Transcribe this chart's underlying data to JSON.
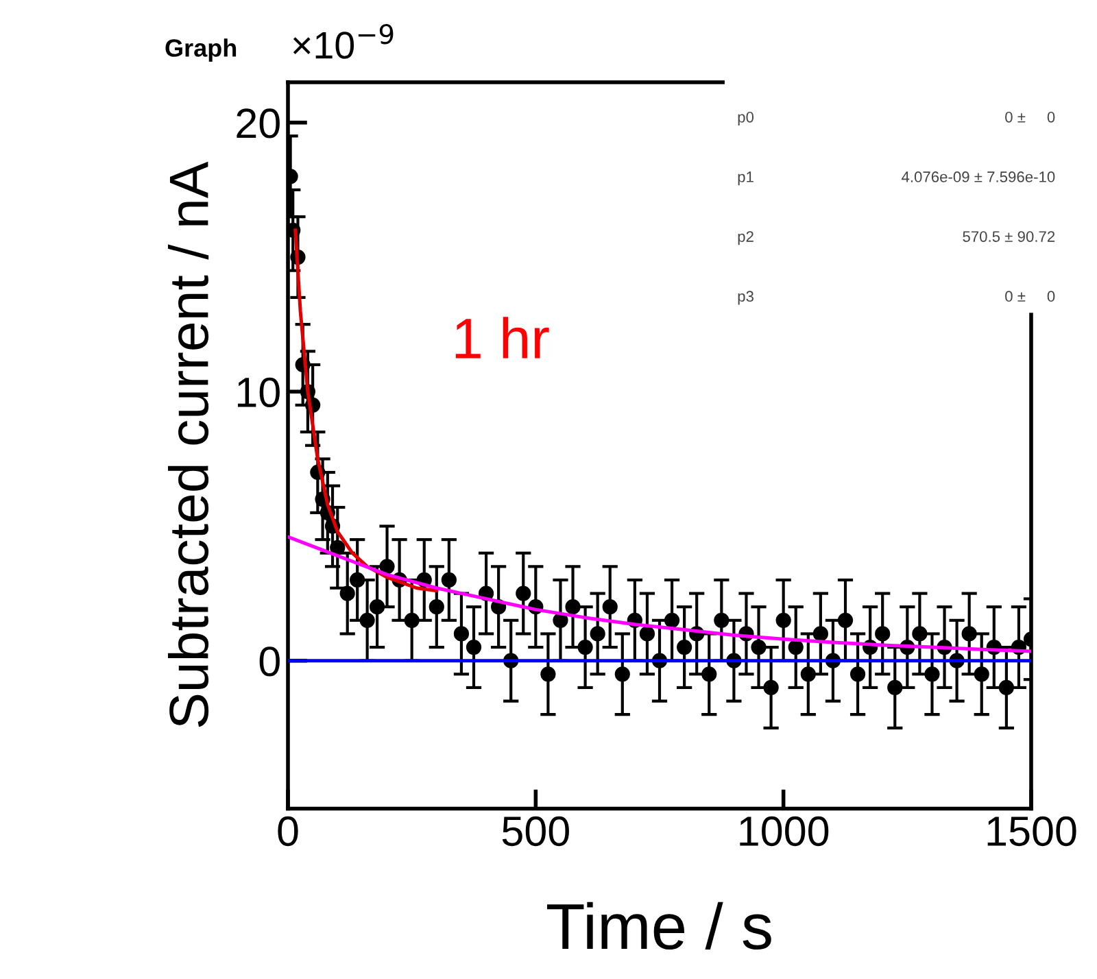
{
  "chart_data": {
    "type": "scatter",
    "title": "Graph",
    "xlabel": "Time / s",
    "ylabel": "Subtracted current / nA",
    "xlim": [
      0,
      1500
    ],
    "xticks": [
      0,
      500,
      1000,
      1500
    ],
    "ylim": [
      -5.5,
      21.5
    ],
    "yticks": [
      0,
      10,
      20
    ],
    "grid": false,
    "annotations": [
      "1 hr",
      "×10$^{−9}$",
      "p0",
      "0 ±     0",
      "p1",
      "4.076e-09 ± 7.596e-10",
      "p2",
      "570.5 ± 90.72",
      "p3",
      "0 ±     0"
    ],
    "series": [
      {
        "color": "#000000",
        "marker": "circle",
        "x": [
          5,
          10,
          20,
          30,
          40,
          50,
          60,
          70,
          80,
          90,
          100,
          120,
          140,
          160,
          180,
          200,
          225,
          250,
          275,
          300,
          325,
          350,
          375,
          400,
          425,
          450,
          475,
          500,
          525,
          550,
          575,
          600,
          625,
          650,
          675,
          700,
          725,
          750,
          775,
          800,
          825,
          850,
          875,
          900,
          925,
          950,
          975,
          1000,
          1025,
          1050,
          1075,
          1100,
          1125,
          1150,
          1175,
          1200,
          1225,
          1250,
          1275,
          1300,
          1325,
          1350,
          1375,
          1400,
          1425,
          1450,
          1475,
          1500
        ],
        "values": [
          18,
          16,
          15,
          11,
          10,
          9.5,
          7,
          6,
          5.5,
          5,
          4.2,
          2.5,
          3,
          1.5,
          2,
          3.5,
          3,
          1.5,
          3,
          2,
          3,
          1,
          0.5,
          2.5,
          2,
          0,
          2.5,
          2,
          -0.5,
          1.5,
          2,
          0.5,
          1,
          2,
          -0.5,
          1.5,
          1,
          0,
          1.5,
          0.5,
          1,
          -0.5,
          1.5,
          0,
          1,
          0.5,
          -1,
          1.5,
          0.5,
          -0.5,
          1,
          0,
          1.5,
          -0.5,
          0.5,
          1,
          -1,
          0.5,
          1,
          -0.5,
          0.5,
          0,
          1,
          -0.5,
          0.5,
          -1,
          0.5,
          0.8
        ],
        "errors": [
          1.5,
          1.5,
          1.5,
          1.5,
          1.5,
          1.5,
          1.5,
          1.5,
          1.5,
          1.5,
          1.5,
          1.5,
          1.5,
          1.5,
          1.5,
          1.5,
          1.5,
          1.5,
          1.5,
          1.5,
          1.5,
          1.5,
          1.5,
          1.5,
          1.5,
          1.5,
          1.5,
          1.5,
          1.5,
          1.5,
          1.5,
          1.5,
          1.5,
          1.5,
          1.5,
          1.5,
          1.5,
          1.5,
          1.5,
          1.5,
          1.5,
          1.5,
          1.5,
          1.5,
          1.5,
          1.5,
          1.5,
          1.5,
          1.5,
          1.5,
          1.5,
          1.5,
          1.5,
          1.5,
          1.5,
          1.5,
          1.5,
          1.5,
          1.5,
          1.5,
          1.5,
          1.5,
          1.5,
          1.5,
          1.5,
          1.5,
          1.5,
          1.5
        ]
      },
      {
        "type": "line",
        "color": "#e00000",
        "x": [
          15,
          25,
          40,
          60,
          80,
          100,
          130,
          160,
          200,
          260,
          300
        ],
        "values": [
          16,
          13,
          10,
          7.5,
          5.8,
          4.8,
          4.0,
          3.5,
          3.1,
          2.7,
          2.6
        ]
      },
      {
        "type": "line",
        "color": "#ff00ff",
        "x": [
          0,
          100,
          200,
          300,
          400,
          500,
          600,
          700,
          800,
          900,
          1000,
          1100,
          1200,
          1300,
          1400,
          1500
        ],
        "values": [
          4.6,
          3.9,
          3.2,
          2.7,
          2.3,
          1.9,
          1.6,
          1.35,
          1.15,
          0.95,
          0.8,
          0.68,
          0.58,
          0.5,
          0.42,
          0.35
        ]
      },
      {
        "type": "line",
        "color": "#0000ff",
        "x": [
          0,
          1500
        ],
        "values": [
          0,
          0
        ]
      }
    ]
  }
}
